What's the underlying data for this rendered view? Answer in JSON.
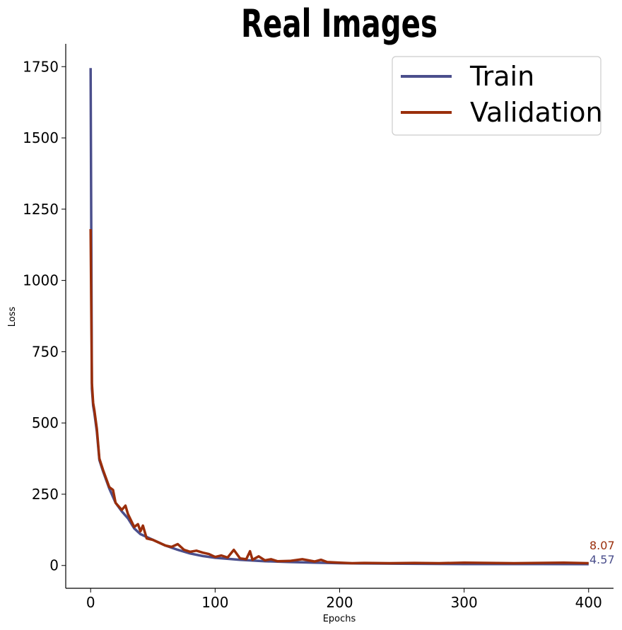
{
  "chart_data": {
    "type": "line",
    "title": "Real Images",
    "xlabel": "Epochs",
    "ylabel": "Loss",
    "xlim": [
      -20,
      420
    ],
    "ylim": [
      -80,
      1830
    ],
    "xticks": [
      "0",
      "100",
      "200",
      "300",
      "400"
    ],
    "yticks": [
      "0",
      "250",
      "500",
      "750",
      "1000",
      "1250",
      "1500",
      "1750"
    ],
    "grid": false,
    "legend_position": "top-right",
    "series": [
      {
        "name": "Train",
        "color": "#4b4f8c",
        "x": [
          0,
          1,
          2,
          3,
          5,
          7,
          10,
          15,
          20,
          25,
          30,
          35,
          40,
          50,
          60,
          70,
          80,
          90,
          100,
          120,
          140,
          160,
          180,
          200,
          220,
          250,
          300,
          350,
          400
        ],
        "y": [
          1745,
          620,
          560,
          535,
          470,
          370,
          330,
          270,
          220,
          190,
          165,
          130,
          110,
          90,
          70,
          55,
          42,
          33,
          27,
          20,
          15,
          12,
          10,
          8,
          7,
          6,
          5,
          5,
          4.57
        ]
      },
      {
        "name": "Validation",
        "color": "#9a2e0b",
        "x": [
          0,
          1,
          2,
          3,
          5,
          7,
          10,
          15,
          18,
          20,
          25,
          28,
          30,
          35,
          38,
          40,
          42,
          45,
          50,
          55,
          60,
          65,
          70,
          75,
          80,
          85,
          90,
          95,
          100,
          105,
          110,
          115,
          120,
          125,
          128,
          130,
          135,
          140,
          145,
          150,
          160,
          170,
          180,
          185,
          190,
          200,
          210,
          220,
          240,
          260,
          280,
          300,
          320,
          340,
          360,
          380,
          400
        ],
        "y": [
          1180,
          640,
          570,
          545,
          480,
          375,
          335,
          275,
          265,
          220,
          195,
          210,
          180,
          135,
          145,
          120,
          140,
          95,
          90,
          80,
          70,
          65,
          75,
          55,
          48,
          52,
          45,
          40,
          30,
          35,
          28,
          55,
          25,
          22,
          50,
          20,
          32,
          18,
          22,
          15,
          16,
          22,
          14,
          20,
          12,
          10,
          8,
          9,
          8,
          9,
          8,
          10,
          9,
          8,
          9,
          10,
          8.07
        ]
      }
    ],
    "end_labels": [
      {
        "series": "Validation",
        "text": "8.07",
        "color": "#9a2e0b"
      },
      {
        "series": "Train",
        "text": "4.57",
        "color": "#4b4f8c"
      }
    ]
  }
}
